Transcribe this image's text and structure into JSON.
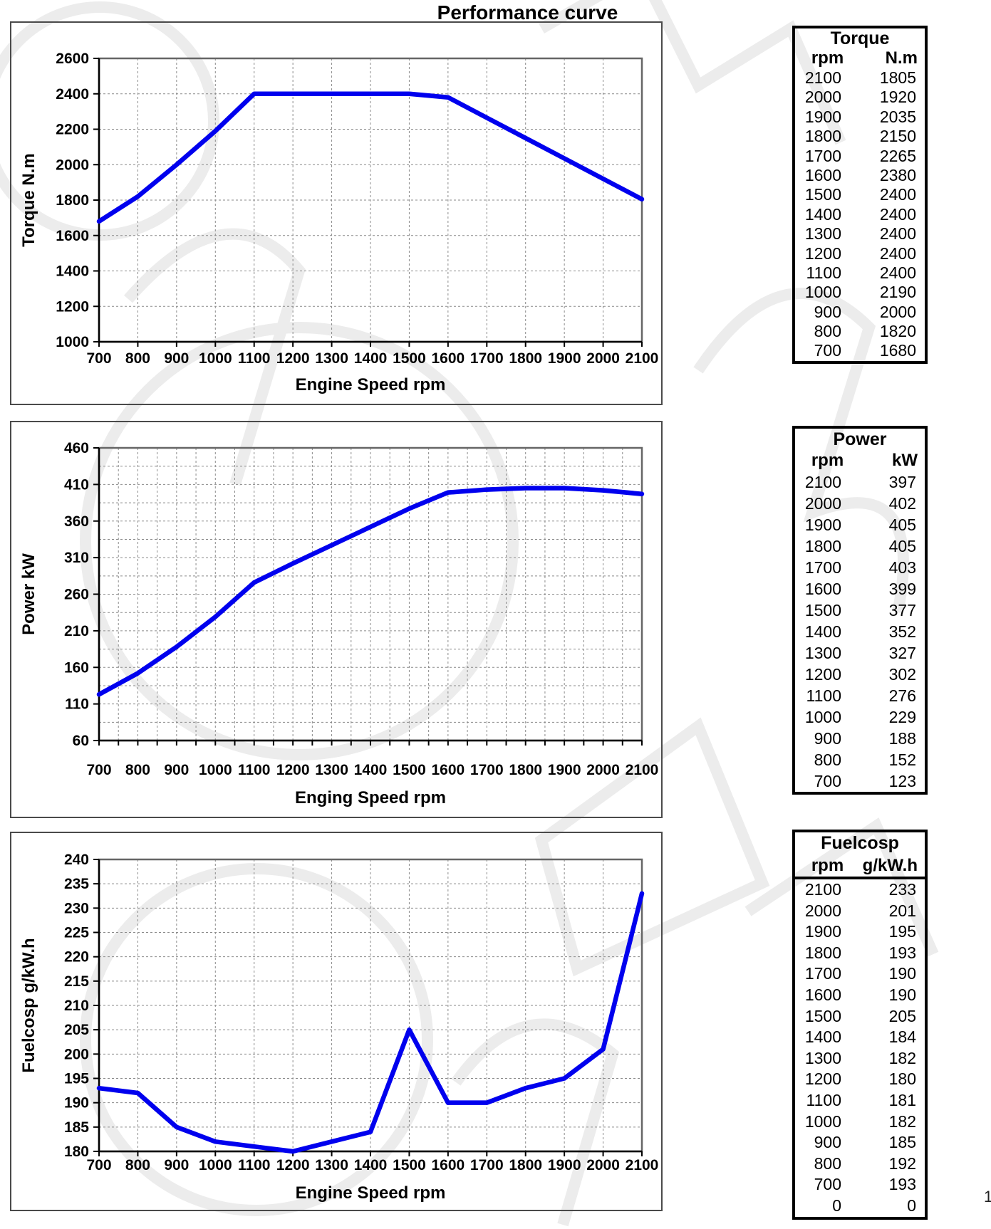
{
  "title": "Performance curve",
  "page_fragment": "1",
  "colors": {
    "curve": "#0000ee",
    "grid": "#8a8a8a",
    "axis": "#000000",
    "frame": "#666666",
    "panel_border": "#4a4a4a",
    "table_border": "#000000",
    "text": "#000000",
    "watermark": "#ececec"
  },
  "chart_data": [
    {
      "id": "torque",
      "type": "line",
      "title": "",
      "xlabel": "Engine Speed rpm",
      "ylabel": "Torque N.m",
      "x": [
        700,
        800,
        900,
        1000,
        1100,
        1200,
        1300,
        1400,
        1500,
        1600,
        1700,
        1800,
        1900,
        2000,
        2100
      ],
      "series": [
        {
          "name": "Torque",
          "values": [
            1680,
            1820,
            2000,
            2190,
            2400,
            2400,
            2400,
            2400,
            2400,
            2380,
            2265,
            2150,
            2035,
            1920,
            1805
          ]
        }
      ],
      "xlim": [
        700,
        2100
      ],
      "ylim": [
        1000,
        2600
      ],
      "xticks": [
        700,
        800,
        900,
        1000,
        1100,
        1200,
        1300,
        1400,
        1500,
        1600,
        1700,
        1800,
        1900,
        2000,
        2100
      ],
      "yticks": [
        1000,
        1200,
        1400,
        1600,
        1800,
        2000,
        2200,
        2400,
        2600
      ],
      "grid_x_step": 100,
      "grid_y_step": 200,
      "grid": true,
      "legend": "none"
    },
    {
      "id": "power",
      "type": "line",
      "title": "",
      "xlabel": "Enging Speed rpm",
      "ylabel": "Power kW",
      "x": [
        700,
        800,
        900,
        1000,
        1100,
        1200,
        1300,
        1400,
        1500,
        1600,
        1700,
        1800,
        1900,
        2000,
        2100
      ],
      "series": [
        {
          "name": "Power",
          "values": [
            123,
            152,
            188,
            229,
            276,
            302,
            327,
            352,
            377,
            399,
            403,
            405,
            405,
            402,
            397
          ]
        }
      ],
      "xlim": [
        700,
        2100
      ],
      "ylim": [
        60,
        460
      ],
      "xticks": [
        700,
        800,
        900,
        1000,
        1100,
        1200,
        1300,
        1400,
        1500,
        1600,
        1700,
        1800,
        1900,
        2000,
        2100
      ],
      "yticks": [
        60,
        110,
        160,
        210,
        260,
        310,
        360,
        410,
        460
      ],
      "grid_x_step": 50,
      "grid_y_step": 25,
      "grid": true,
      "legend": "none"
    },
    {
      "id": "fuel",
      "type": "line",
      "title": "",
      "xlabel": "Engine Speed rpm",
      "ylabel": "Fuelcosp g/kW.h",
      "x": [
        700,
        800,
        900,
        1000,
        1100,
        1200,
        1300,
        1400,
        1500,
        1600,
        1700,
        1800,
        1900,
        2000,
        2100
      ],
      "series": [
        {
          "name": "Fuelcosp",
          "values": [
            193,
            192,
            185,
            182,
            181,
            180,
            182,
            184,
            205,
            190,
            190,
            193,
            195,
            201,
            233
          ]
        }
      ],
      "xlim": [
        700,
        2100
      ],
      "ylim": [
        180,
        240
      ],
      "xticks": [
        700,
        800,
        900,
        1000,
        1100,
        1200,
        1300,
        1400,
        1500,
        1600,
        1700,
        1800,
        1900,
        2000,
        2100
      ],
      "yticks": [
        180,
        185,
        190,
        195,
        200,
        205,
        210,
        215,
        220,
        225,
        230,
        235,
        240
      ],
      "grid_x_step": 100,
      "grid_y_step": 5,
      "grid": true,
      "legend": "none"
    }
  ],
  "tables": [
    {
      "id": "torque",
      "title": "Torque",
      "col1": "rpm",
      "col2": "N.m",
      "header_rule": false,
      "rows": [
        [
          "2100",
          "1805"
        ],
        [
          "2000",
          "1920"
        ],
        [
          "1900",
          "2035"
        ],
        [
          "1800",
          "2150"
        ],
        [
          "1700",
          "2265"
        ],
        [
          "1600",
          "2380"
        ],
        [
          "1500",
          "2400"
        ],
        [
          "1400",
          "2400"
        ],
        [
          "1300",
          "2400"
        ],
        [
          "1200",
          "2400"
        ],
        [
          "1100",
          "2400"
        ],
        [
          "1000",
          "2190"
        ],
        [
          "900",
          "2000"
        ],
        [
          "800",
          "1820"
        ],
        [
          "700",
          "1680"
        ]
      ]
    },
    {
      "id": "power",
      "title": "Power",
      "col1": "rpm",
      "col2": "kW",
      "header_rule": false,
      "rows": [
        [
          "2100",
          "397"
        ],
        [
          "2000",
          "402"
        ],
        [
          "1900",
          "405"
        ],
        [
          "1800",
          "405"
        ],
        [
          "1700",
          "403"
        ],
        [
          "1600",
          "399"
        ],
        [
          "1500",
          "377"
        ],
        [
          "1400",
          "352"
        ],
        [
          "1300",
          "327"
        ],
        [
          "1200",
          "302"
        ],
        [
          "1100",
          "276"
        ],
        [
          "1000",
          "229"
        ],
        [
          "900",
          "188"
        ],
        [
          "800",
          "152"
        ],
        [
          "700",
          "123"
        ]
      ]
    },
    {
      "id": "fuel",
      "title": "Fuelcosp",
      "col1": "rpm",
      "col2": "g/kW.h",
      "header_rule": true,
      "rows": [
        [
          "2100",
          "233"
        ],
        [
          "2000",
          "201"
        ],
        [
          "1900",
          "195"
        ],
        [
          "1800",
          "193"
        ],
        [
          "1700",
          "190"
        ],
        [
          "1600",
          "190"
        ],
        [
          "1500",
          "205"
        ],
        [
          "1400",
          "184"
        ],
        [
          "1300",
          "182"
        ],
        [
          "1200",
          "180"
        ],
        [
          "1100",
          "181"
        ],
        [
          "1000",
          "182"
        ],
        [
          "900",
          "185"
        ],
        [
          "800",
          "192"
        ],
        [
          "700",
          "193"
        ],
        [
          "0",
          "0"
        ]
      ]
    }
  ]
}
